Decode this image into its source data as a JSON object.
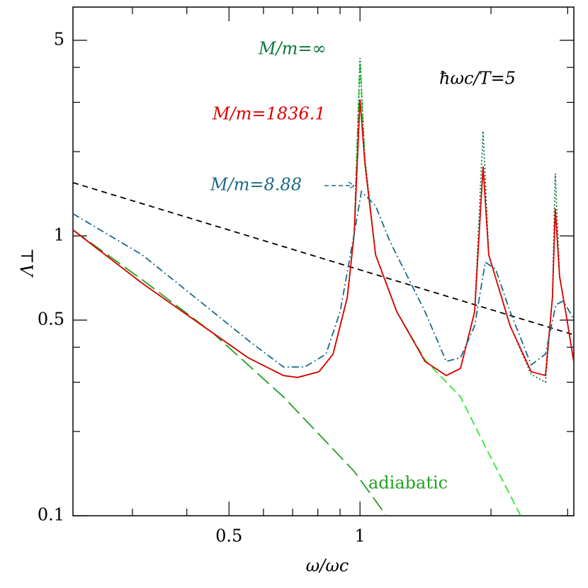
{
  "chart_data": {
    "type": "line",
    "x_label": "ω/ωc",
    "y_label": "Λ⊥",
    "annotation": "ħωc/T=5",
    "xscale": "log",
    "yscale": "log",
    "xlim": [
      0.219,
      3.1
    ],
    "ylim": [
      0.1,
      6.57
    ],
    "xticks": [
      0.5,
      1
    ],
    "xminorticks": [
      0.3,
      0.4,
      0.6,
      0.7,
      0.8,
      0.9,
      2,
      3
    ],
    "yticks": [
      0.1,
      0.5,
      1,
      5
    ],
    "yminorticks": [
      0.2,
      0.3,
      0.4,
      2,
      3,
      4
    ],
    "series": [
      {
        "color": "#000000",
        "dash": "8 6",
        "x": [
          0.219,
          3.1
        ],
        "values": [
          1.55,
          0.443
        ]
      },
      {
        "name": "adiabatic",
        "color": "#22a022",
        "dash": "22 8",
        "x": [
          0.219,
          0.316,
          0.459,
          0.667,
          0.97,
          1.15
        ],
        "values": [
          1.05,
          0.697,
          0.45,
          0.266,
          0.144,
          0.1
        ]
      },
      {
        "color": "#33e633",
        "dash": "12 6",
        "x": [
          0.219,
          0.316,
          0.459,
          0.553,
          0.667,
          0.719,
          0.805,
          0.867,
          0.935,
          0.97,
          1.0,
          1.026,
          1.086,
          1.215,
          1.411,
          1.702,
          1.976,
          2.34
        ],
        "values": [
          1.05,
          0.677,
          0.45,
          0.367,
          0.317,
          0.312,
          0.327,
          0.378,
          0.602,
          1.02,
          4.2,
          1.85,
          0.855,
          0.536,
          0.36,
          0.266,
          0.167,
          0.1
        ]
      },
      {
        "name": "M/m=∞",
        "color": "#0a7a3a",
        "dash": "2 3",
        "x": [
          0.219,
          0.316,
          0.459,
          0.553,
          0.667,
          0.719,
          0.805,
          0.867,
          0.935,
          0.97,
          1.0,
          1.026,
          1.086,
          1.215,
          1.411,
          1.578,
          1.702,
          1.834,
          1.918,
          1.976,
          2.213,
          2.474,
          2.667,
          2.768,
          2.81,
          2.875,
          2.987,
          3.098
        ],
        "values": [
          1.05,
          0.677,
          0.45,
          0.367,
          0.317,
          0.312,
          0.327,
          0.378,
          0.602,
          1.02,
          4.32,
          1.9,
          0.855,
          0.536,
          0.356,
          0.317,
          0.336,
          0.536,
          2.37,
          0.855,
          0.477,
          0.32,
          0.3,
          0.602,
          1.67,
          0.717,
          0.506,
          0.356
        ]
      },
      {
        "name": "M/m=1836.1",
        "color": "#e00000",
        "dash": "",
        "x": [
          0.219,
          0.316,
          0.459,
          0.553,
          0.667,
          0.719,
          0.805,
          0.867,
          0.935,
          0.97,
          1.0,
          1.026,
          1.086,
          1.215,
          1.411,
          1.578,
          1.702,
          1.834,
          1.918,
          1.976,
          2.213,
          2.474,
          2.667,
          2.768,
          2.81,
          2.875,
          2.987,
          3.098
        ],
        "values": [
          1.05,
          0.677,
          0.45,
          0.367,
          0.317,
          0.312,
          0.327,
          0.378,
          0.602,
          1.02,
          3.08,
          1.82,
          0.855,
          0.536,
          0.356,
          0.317,
          0.336,
          0.536,
          1.77,
          0.855,
          0.477,
          0.327,
          0.317,
          0.602,
          1.25,
          0.717,
          0.506,
          0.356
        ]
      },
      {
        "name": "M/m=8.88",
        "color": "#1a6b8a",
        "dash": "10 4 2 4",
        "x": [
          0.219,
          0.316,
          0.459,
          0.553,
          0.667,
          0.747,
          0.835,
          0.9,
          0.97,
          1.0075,
          1.086,
          1.17,
          1.411,
          1.578,
          1.702,
          1.834,
          1.94,
          2.05,
          2.213,
          2.474,
          2.667,
          2.82,
          2.93,
          3.098
        ],
        "values": [
          1.2,
          0.855,
          0.536,
          0.424,
          0.34,
          0.34,
          0.378,
          0.536,
          1.02,
          1.44,
          1.28,
          0.96,
          0.536,
          0.356,
          0.367,
          0.477,
          0.806,
          0.76,
          0.536,
          0.346,
          0.378,
          0.568,
          0.585,
          0.506
        ]
      }
    ]
  }
}
